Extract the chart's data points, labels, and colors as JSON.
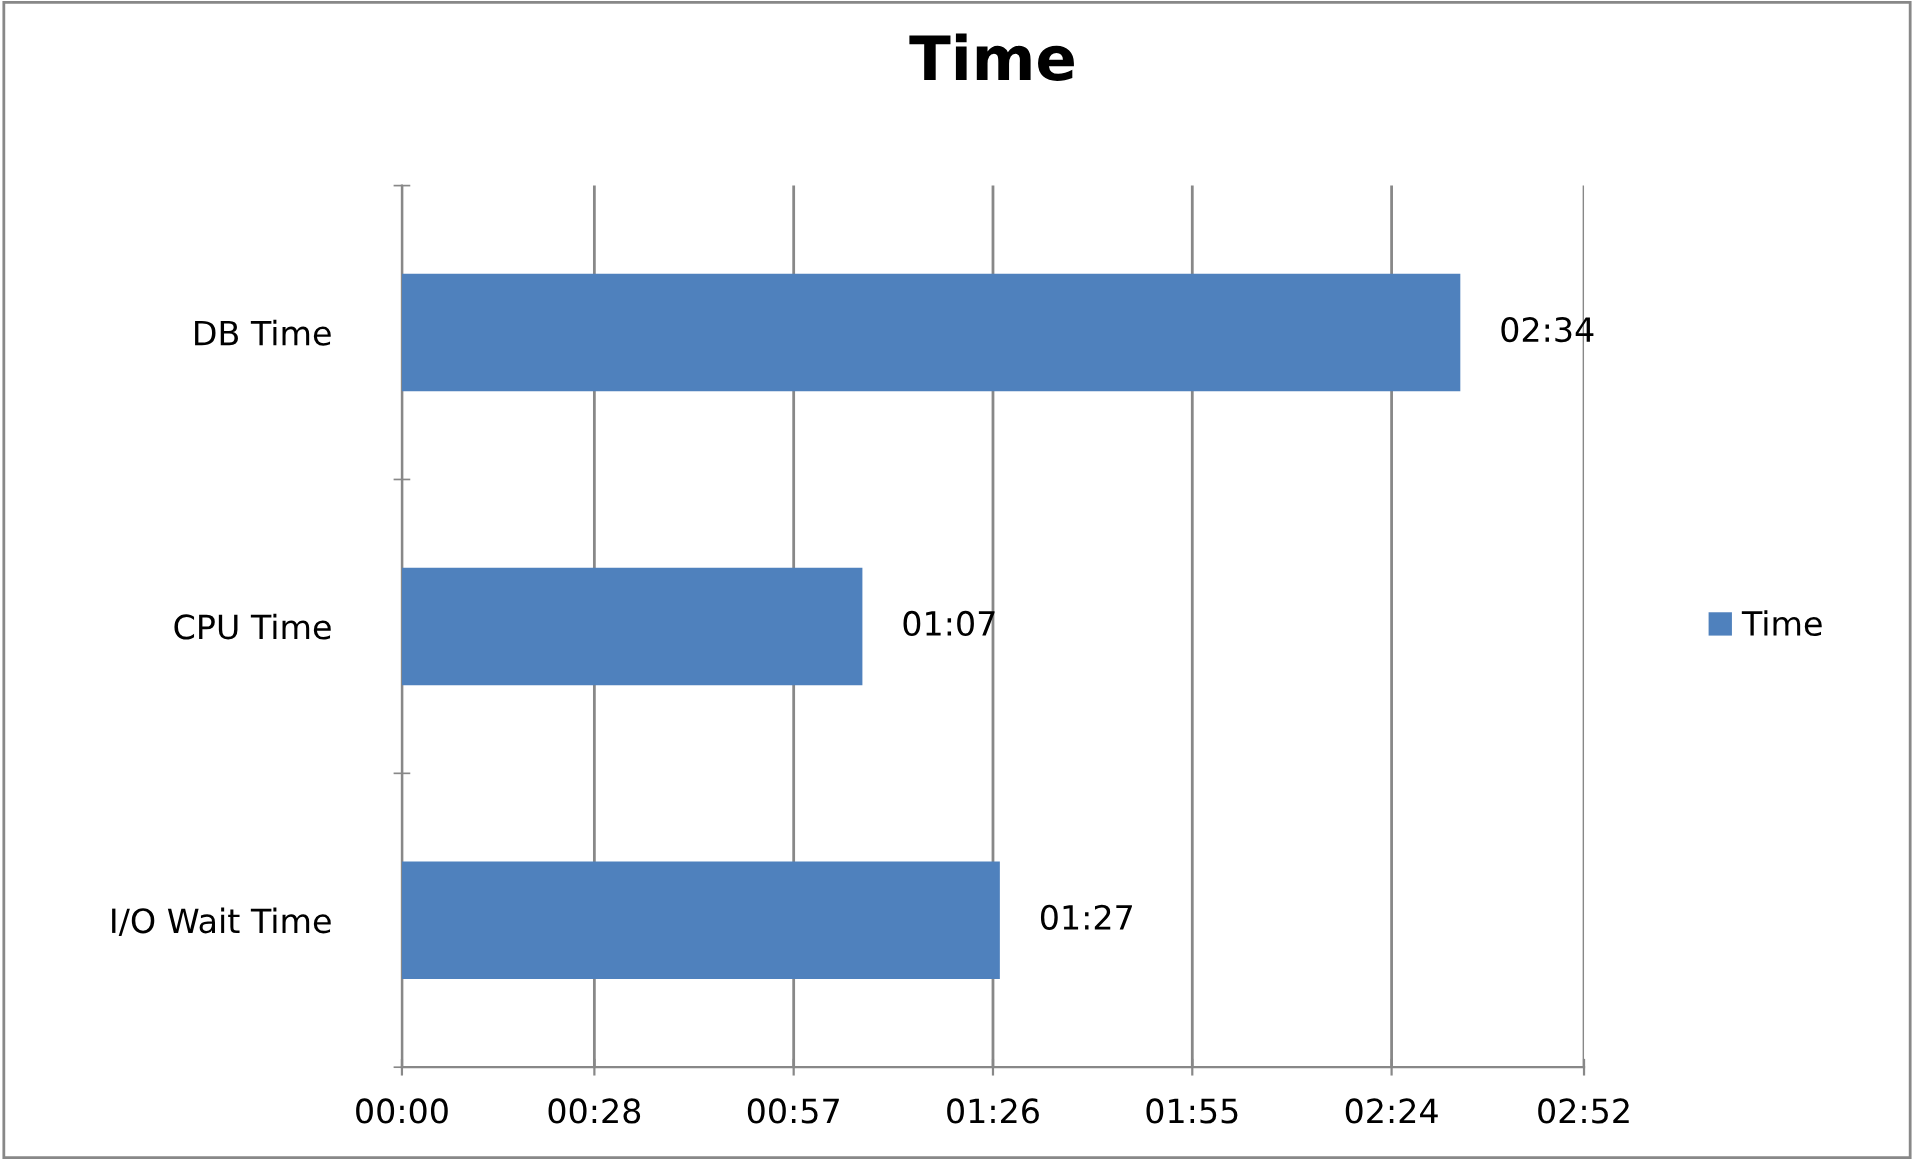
{
  "chart_data": {
    "type": "bar",
    "orientation": "horizontal",
    "title": "Time",
    "categories": [
      "DB Time",
      "CPU Time",
      "I/O Wait Time"
    ],
    "series": [
      {
        "name": "Time",
        "color": "#4f81bd",
        "values": [
          154,
          67,
          87
        ],
        "value_labels": [
          "02:34",
          "01:07",
          "01:27"
        ]
      }
    ],
    "xlim": [
      0,
      172
    ],
    "xticks": [
      {
        "value": 0,
        "label": "00:00"
      },
      {
        "value": 28,
        "label": "00:28"
      },
      {
        "value": 57,
        "label": "00:57"
      },
      {
        "value": 86,
        "label": "01:26"
      },
      {
        "value": 115,
        "label": "01:55"
      },
      {
        "value": 144,
        "label": "02:24"
      },
      {
        "value": 172,
        "label": "02:52"
      }
    ],
    "grid": "x",
    "legend": "right"
  }
}
